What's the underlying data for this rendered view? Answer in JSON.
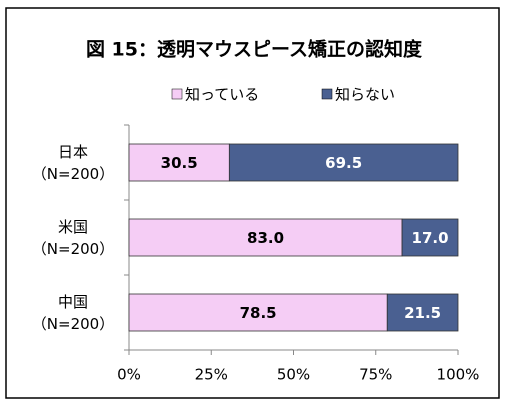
{
  "chart_data": {
    "type": "stacked-bar-horizontal",
    "title": "図 15：透明マウスピース矯正の認知度",
    "categories": [
      "日本\n（N=200）",
      "米国\n（N=200）",
      "中国\n（N=200）"
    ],
    "series": [
      {
        "name": "知っている",
        "color": "#f5cdf5",
        "values": [
          30.5,
          83.0,
          78.5
        ],
        "value_labels": [
          "30.5",
          "83.0",
          "78.5"
        ]
      },
      {
        "name": "知らない",
        "color": "#4a6091",
        "values": [
          69.5,
          17.0,
          21.5
        ],
        "value_labels": [
          "69.5",
          "17.0",
          "21.5"
        ]
      }
    ],
    "xlim": [
      0,
      100
    ],
    "xticks": [
      {
        "value": 0,
        "label": "0%"
      },
      {
        "value": 25,
        "label": "25%"
      },
      {
        "value": 50,
        "label": "50%"
      },
      {
        "value": 75,
        "label": "75%"
      },
      {
        "value": 100,
        "label": "100%"
      }
    ],
    "legend": "top"
  }
}
